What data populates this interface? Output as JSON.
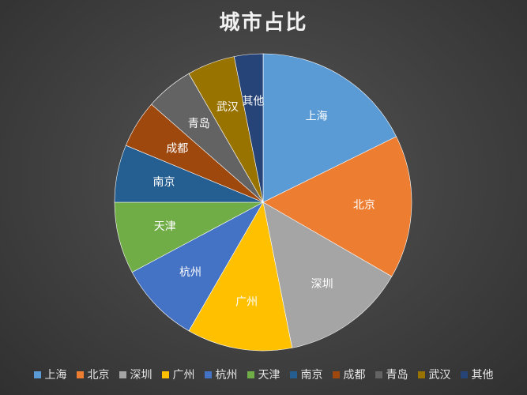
{
  "chart_data": {
    "type": "pie",
    "title": "城市占比",
    "labels": [
      "上海",
      "北京",
      "深圳",
      "广州",
      "杭州",
      "天津",
      "南京",
      "成都",
      "青岛",
      "武汉",
      "其他"
    ],
    "values": [
      17,
      15,
      13,
      11,
      8.5,
      7.5,
      6,
      5,
      5,
      5,
      3
    ],
    "colors": [
      "#5b9bd5",
      "#ed7d31",
      "#a5a5a5",
      "#ffc000",
      "#4472c4",
      "#70ad47",
      "#255e91",
      "#9e480e",
      "#636363",
      "#997300",
      "#264478"
    ],
    "legend": "bottom",
    "show_labels": true
  }
}
